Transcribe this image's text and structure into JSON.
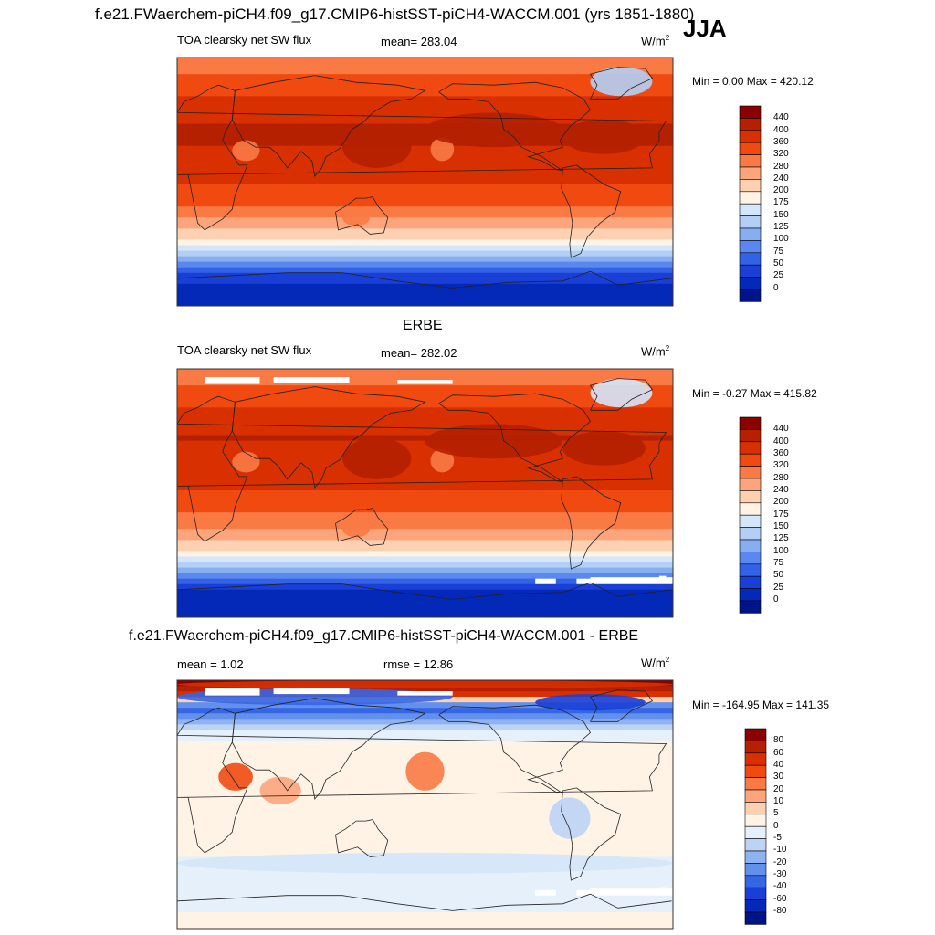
{
  "header": {
    "title": "f.e21.FWaerchem-piCH4.f09_g17.CMIP6-histSST-piCH4-WACCM.001 (yrs 1851-1880)",
    "season": "JJA"
  },
  "panels": [
    {
      "id": "model",
      "variable": "TOA clearsky net SW flux",
      "stat": "mean= 283.04",
      "units": "W/m",
      "units_sup": "2",
      "minmax": "Min =   0.00 Max = 420.12"
    },
    {
      "id": "obs",
      "title": "ERBE",
      "variable": "TOA clearsky net SW flux",
      "stat": "mean= 282.02",
      "units": "W/m",
      "units_sup": "2",
      "minmax": "Min =  -0.27 Max = 415.82"
    },
    {
      "id": "diff",
      "title": "f.e21.FWaerchem-piCH4.f09_g17.CMIP6-histSST-piCH4-WACCM.001 - ERBE",
      "stat": "mean =   1.02",
      "rmse": "rmse =  12.86",
      "units": "W/m",
      "units_sup": "2",
      "minmax": "Min = -164.95 Max = 141.35"
    }
  ],
  "colorbars": {
    "absolute": {
      "levels": [
        "440",
        "400",
        "360",
        "320",
        "280",
        "240",
        "200",
        "175",
        "150",
        "125",
        "100",
        "75",
        "50",
        "25",
        "0"
      ],
      "colors": [
        "#8b0000",
        "#b52000",
        "#d83000",
        "#f04a10",
        "#fa7a45",
        "#fca57c",
        "#fdd0b2",
        "#fff3e6",
        "#d4e6f9",
        "#b3cff5",
        "#88aef2",
        "#5b88ee",
        "#3462e6",
        "#1a3fd6",
        "#0428b8",
        "#001489"
      ]
    },
    "difference": {
      "levels": [
        "80",
        "60",
        "40",
        "30",
        "20",
        "10",
        "5",
        "0",
        "-5",
        "-10",
        "-20",
        "-30",
        "-40",
        "-60",
        "-80"
      ],
      "colors": [
        "#8b0000",
        "#b52000",
        "#d83000",
        "#f04a10",
        "#fa7a45",
        "#fca57c",
        "#fdd0b2",
        "#fff3e6",
        "#e6f0fb",
        "#bcd3f5",
        "#8fb2f0",
        "#6390ec",
        "#3566e4",
        "#1a3fd6",
        "#0428b8",
        "#001489"
      ]
    }
  },
  "chart_data": [
    {
      "type": "heatmap",
      "title": "TOA clearsky net SW flux",
      "subtitle": "mean= 283.04",
      "zlabel": "W/m2",
      "zrange": [
        0.0,
        420.12
      ],
      "x": "longitude (0 to 360, map projection)",
      "y": "latitude (-90 to 90)",
      "zonal_profile": {
        "lat": [
          85,
          70,
          55,
          40,
          25,
          10,
          -5,
          -20,
          -35,
          -50,
          -60,
          -70,
          -80
        ],
        "values": [
          300,
          345,
          380,
          405,
          400,
          375,
          355,
          310,
          240,
          140,
          80,
          30,
          10
        ]
      }
    },
    {
      "type": "heatmap",
      "title": "ERBE",
      "subtitle": "mean= 282.02",
      "zlabel": "W/m2",
      "zrange": [
        -0.27,
        415.82
      ],
      "zonal_profile": {
        "lat": [
          85,
          70,
          55,
          40,
          25,
          10,
          -5,
          -20,
          -35,
          -50,
          -60,
          -70,
          -80
        ],
        "values": [
          290,
          340,
          378,
          400,
          398,
          372,
          352,
          308,
          238,
          140,
          75,
          28,
          8
        ]
      }
    },
    {
      "type": "heatmap",
      "title": "f.e21.FWaerchem-piCH4.f09_g17.CMIP6-histSST-piCH4-WACCM.001 - ERBE",
      "subtitle": "mean =   1.02  rmse =  12.86",
      "zlabel": "W/m2",
      "zrange": [
        -164.95,
        141.35
      ],
      "zonal_profile": {
        "lat": [
          85,
          70,
          55,
          40,
          25,
          10,
          -5,
          -20,
          -35,
          -50,
          -60,
          -70,
          -80
        ],
        "values": [
          80,
          -40,
          -5,
          3,
          3,
          2,
          3,
          3,
          1,
          -3,
          -5,
          -2,
          0
        ]
      }
    }
  ]
}
